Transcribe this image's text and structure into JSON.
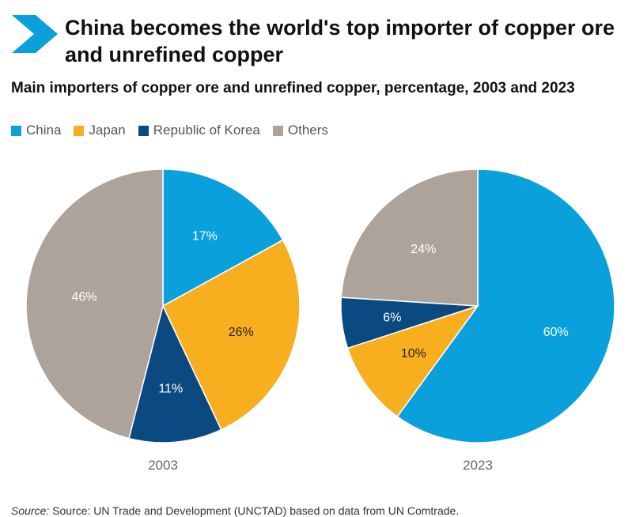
{
  "title": "China becomes the world's top importer of copper ore and unrefined copper",
  "subtitle": "Main importers of copper ore and unrefined copper, percentage, 2003 and 2023",
  "colors": {
    "China": "#0aa0dc",
    "Japan": "#f7ae1f",
    "Republic of Korea": "#0b4a80",
    "Others": "#aea39a",
    "accent": "#0aa0dc"
  },
  "legend": [
    {
      "label": "China",
      "color": "#0aa0dc"
    },
    {
      "label": "Japan",
      "color": "#f7ae1f"
    },
    {
      "label": "Republic of Korea",
      "color": "#0b4a80"
    },
    {
      "label": "Others",
      "color": "#aea39a"
    }
  ],
  "chart_data": [
    {
      "type": "pie",
      "caption": "2003",
      "slices": [
        {
          "category": "China",
          "value": 17,
          "label": "17%"
        },
        {
          "category": "Japan",
          "value": 26,
          "label": "26%"
        },
        {
          "category": "Republic of Korea",
          "value": 11,
          "label": "11%"
        },
        {
          "category": "Others",
          "value": 46,
          "label": "46%"
        }
      ]
    },
    {
      "type": "pie",
      "caption": "2023",
      "slices": [
        {
          "category": "China",
          "value": 60,
          "label": "60%"
        },
        {
          "category": "Japan",
          "value": 10,
          "label": "10%"
        },
        {
          "category": "Republic of Korea",
          "value": 6,
          "label": "6%"
        },
        {
          "category": "Others",
          "value": 24,
          "label": "24%"
        }
      ]
    }
  ],
  "source": {
    "prefix": "Source:",
    "text": " Source: UN Trade and Development (UNCTAD) based on data from UN Comtrade."
  }
}
